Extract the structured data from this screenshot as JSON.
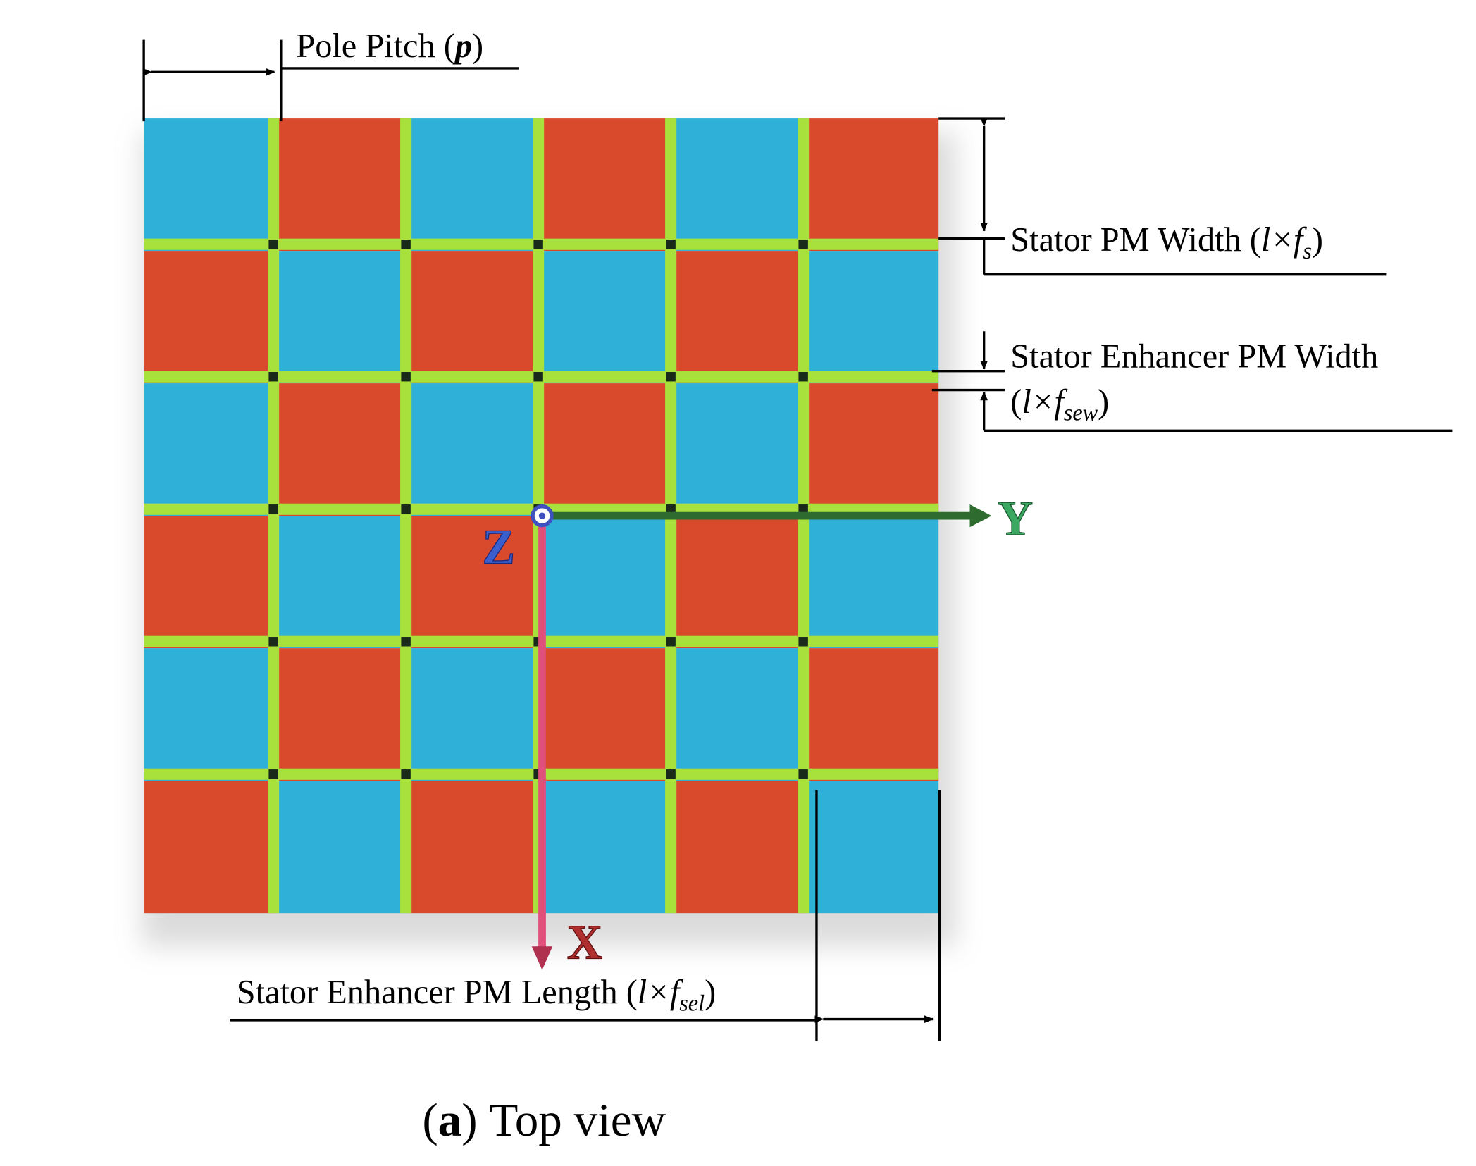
{
  "pole_pitch": {
    "text": "Pole Pitch (",
    "var": "p",
    "close": ")"
  },
  "stator_pm_width": {
    "text": "Stator PM Width (",
    "var": "l×f",
    "sub": "s",
    "close": ")"
  },
  "enhancer_width": {
    "line1": "Stator Enhancer PM Width",
    "open": "(",
    "var": "l×f",
    "sub": "sew",
    "close": ")"
  },
  "enhancer_length": {
    "text": "Stator Enhancer PM Length (",
    "var": "l×f",
    "sub": "sel",
    "close": ")"
  },
  "axes": {
    "x": "X",
    "y": "Y",
    "z": "Z"
  },
  "caption": {
    "letter": "a",
    "text": "Top view",
    "open": "(",
    "close": ")"
  }
}
